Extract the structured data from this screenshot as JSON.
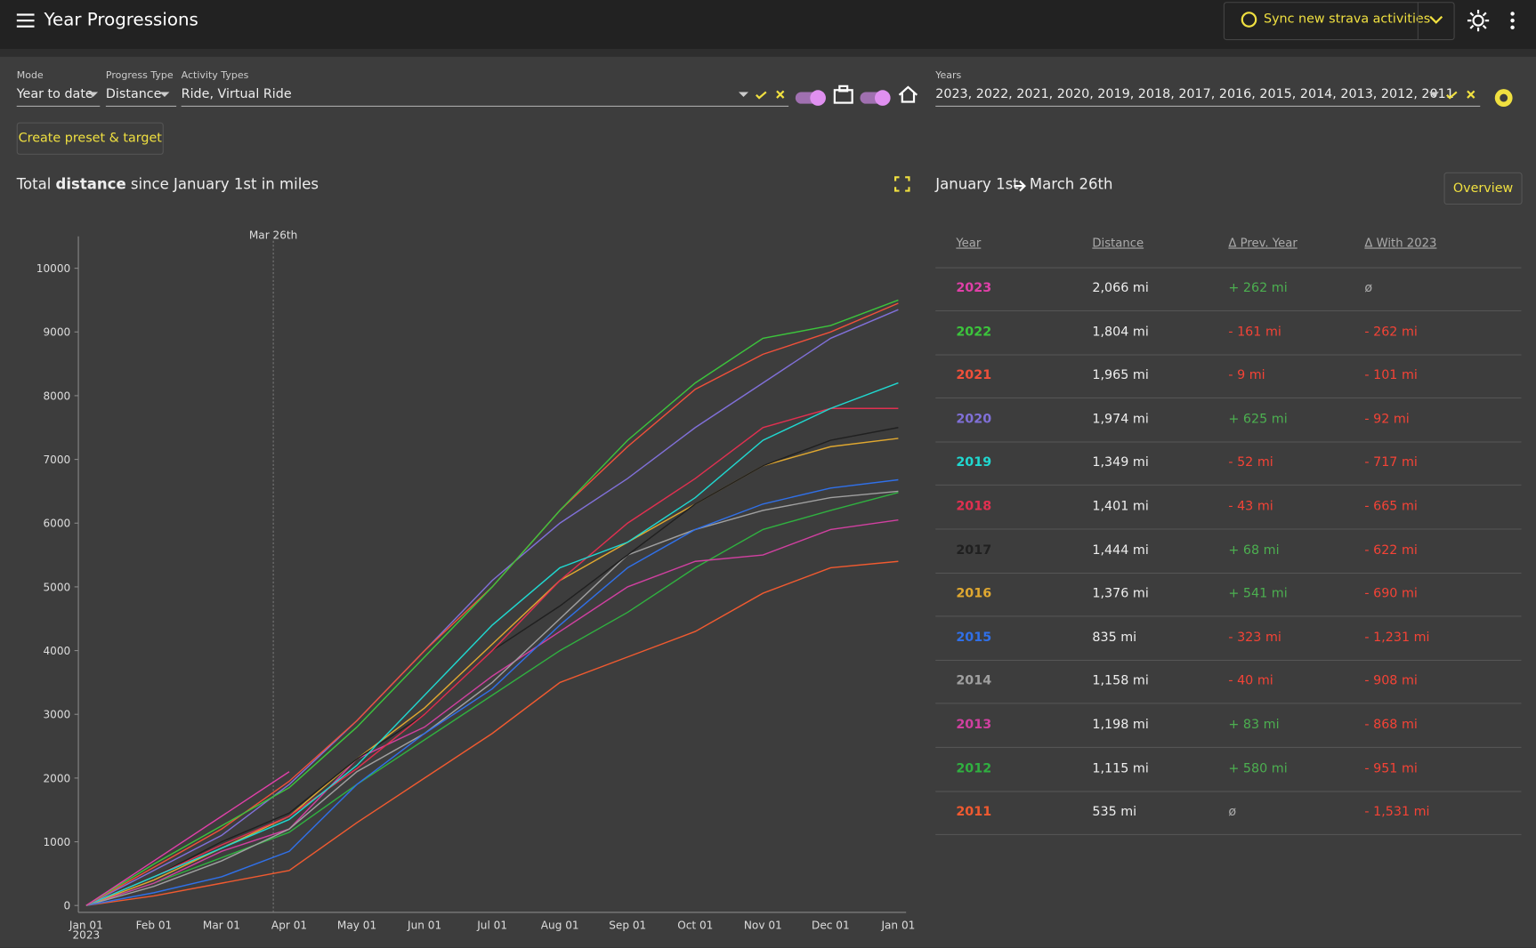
{
  "header": {
    "title": "Year Progressions",
    "sync_button": "Sync new strava activities"
  },
  "filters": {
    "mode": {
      "label": "Mode",
      "value": "Year to date"
    },
    "progress_type": {
      "label": "Progress Type",
      "value": "Distance"
    },
    "activity_types": {
      "label": "Activity Types",
      "value": "Ride, Virtual Ride"
    },
    "years": {
      "label": "Years",
      "value": "2023, 2022, 2021, 2020, 2019, 2018, 2017, 2016, 2015, 2014, 2013, 2012, 2011"
    }
  },
  "preset_button": "Create preset & target",
  "chart_data": {
    "type": "line",
    "title_prefix": "Total",
    "title_bold": "distance",
    "title_suffix": "since January 1st in miles",
    "annotation": "Mar 26th",
    "x_year_label": "2023",
    "x": [
      "Jan 01",
      "Feb 01",
      "Mar 01",
      "Apr 01",
      "May 01",
      "Jun 01",
      "Jul 01",
      "Aug 01",
      "Sep 01",
      "Oct 01",
      "Nov 01",
      "Dec 01",
      "Jan 01"
    ],
    "ylim": [
      0,
      10500
    ],
    "yticks": [
      0,
      1000,
      2000,
      3000,
      4000,
      5000,
      6000,
      7000,
      8000,
      9000,
      10000
    ],
    "series": [
      {
        "name": "2023",
        "color": "#e040a8",
        "values": [
          0,
          700,
          1400,
          2100,
          null,
          null,
          null,
          null,
          null,
          null,
          null,
          null,
          null
        ]
      },
      {
        "name": "2022",
        "color": "#3cc43c",
        "values": [
          0,
          650,
          1250,
          1850,
          2800,
          3900,
          5000,
          6200,
          7300,
          8200,
          8900,
          9100,
          9500
        ]
      },
      {
        "name": "2021",
        "color": "#f0503a",
        "values": [
          0,
          600,
          1200,
          1950,
          2900,
          4000,
          5000,
          6200,
          7200,
          8100,
          8650,
          9000,
          9450
        ]
      },
      {
        "name": "2020",
        "color": "#8070d8",
        "values": [
          0,
          550,
          1100,
          1900,
          2900,
          4000,
          5100,
          6000,
          6700,
          7500,
          8200,
          8900,
          9350
        ]
      },
      {
        "name": "2019",
        "color": "#20d8d0",
        "values": [
          0,
          450,
          900,
          1350,
          2200,
          3300,
          4400,
          5300,
          5700,
          6400,
          7300,
          7800,
          8200
        ]
      },
      {
        "name": "2018",
        "color": "#e03050",
        "values": [
          0,
          450,
          950,
          1400,
          2150,
          3000,
          4000,
          5100,
          6000,
          6700,
          7500,
          7800,
          7800
        ]
      },
      {
        "name": "2017",
        "color": "#202020",
        "values": [
          0,
          450,
          1000,
          1450,
          2300,
          3000,
          4000,
          4700,
          5500,
          6300,
          6900,
          7300,
          7500
        ]
      },
      {
        "name": "2016",
        "color": "#e0a830",
        "values": [
          0,
          400,
          900,
          1400,
          2300,
          3100,
          4100,
          5100,
          5700,
          6300,
          6900,
          7200,
          7330
        ]
      },
      {
        "name": "2015",
        "color": "#3070e8",
        "values": [
          0,
          200,
          450,
          850,
          1900,
          2700,
          3400,
          4400,
          5300,
          5900,
          6300,
          6550,
          6680
        ]
      },
      {
        "name": "2014",
        "color": "#a0a0a0",
        "values": [
          0,
          300,
          700,
          1200,
          2100,
          2700,
          3500,
          4500,
          5500,
          5900,
          6200,
          6400,
          6500
        ]
      },
      {
        "name": "2013",
        "color": "#d040a0",
        "values": [
          0,
          350,
          850,
          1200,
          2300,
          2800,
          3600,
          4300,
          5000,
          5400,
          5500,
          5900,
          6050
        ]
      },
      {
        "name": "2012",
        "color": "#30b040",
        "values": [
          0,
          350,
          750,
          1150,
          1900,
          2600,
          3300,
          4000,
          4600,
          5300,
          5900,
          6200,
          6480
        ]
      },
      {
        "name": "2011",
        "color": "#f05a30",
        "values": [
          0,
          150,
          350,
          550,
          1300,
          2000,
          2700,
          3500,
          3900,
          4300,
          4900,
          5300,
          5400
        ]
      }
    ]
  },
  "summary": {
    "from": "January 1st",
    "to": "March 26th",
    "button": "Overview",
    "columns": [
      "Year",
      "Distance",
      "Δ Prev. Year",
      "Δ With 2023"
    ],
    "rows": [
      {
        "year": "2023",
        "distance": "2,066 mi",
        "prev": "+ 262 mi",
        "with": "ø"
      },
      {
        "year": "2022",
        "distance": "1,804 mi",
        "prev": "- 161 mi",
        "with": "- 262 mi"
      },
      {
        "year": "2021",
        "distance": "1,965 mi",
        "prev": "- 9 mi",
        "with": "- 101 mi"
      },
      {
        "year": "2020",
        "distance": "1,974 mi",
        "prev": "+ 625 mi",
        "with": "- 92 mi"
      },
      {
        "year": "2019",
        "distance": "1,349 mi",
        "prev": "- 52 mi",
        "with": "- 717 mi"
      },
      {
        "year": "2018",
        "distance": "1,401 mi",
        "prev": "- 43 mi",
        "with": "- 665 mi"
      },
      {
        "year": "2017",
        "distance": "1,444 mi",
        "prev": "+ 68 mi",
        "with": "- 622 mi"
      },
      {
        "year": "2016",
        "distance": "1,376 mi",
        "prev": "+ 541 mi",
        "with": "- 690 mi"
      },
      {
        "year": "2015",
        "distance": "835 mi",
        "prev": "- 323 mi",
        "with": "- 1,231 mi"
      },
      {
        "year": "2014",
        "distance": "1,158 mi",
        "prev": "- 40 mi",
        "with": "- 908 mi"
      },
      {
        "year": "2013",
        "distance": "1,198 mi",
        "prev": "+ 83 mi",
        "with": "- 868 mi"
      },
      {
        "year": "2012",
        "distance": "1,115 mi",
        "prev": "+ 580 mi",
        "with": "- 951 mi"
      },
      {
        "year": "2011",
        "distance": "535 mi",
        "prev": "ø",
        "with": "- 1,531 mi"
      }
    ]
  }
}
